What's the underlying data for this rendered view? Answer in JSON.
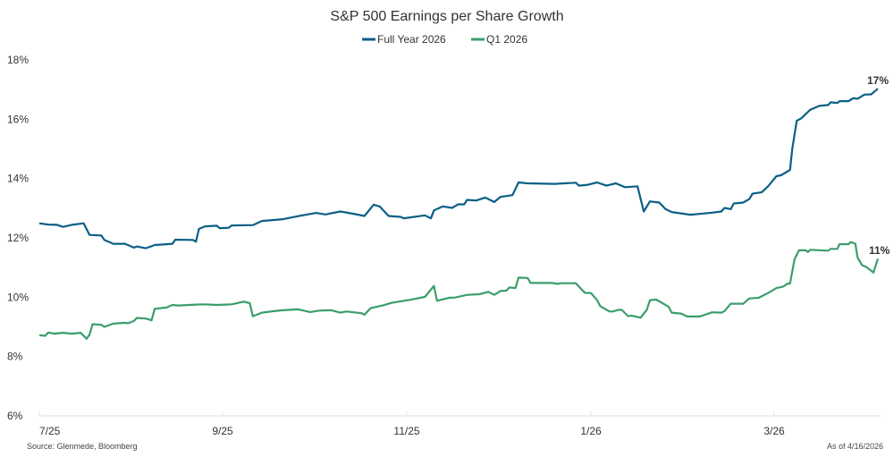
{
  "chart_data": {
    "type": "line",
    "title": "S&P 500 Earnings per Share Growth",
    "xlabel": "",
    "ylabel": "",
    "ylim": [
      6,
      18
    ],
    "yticks": [
      "6%",
      "8%",
      "10%",
      "12%",
      "14%",
      "16%",
      "18%"
    ],
    "xticks": [
      "7/25",
      "9/25",
      "11/25",
      "1/26",
      "3/26"
    ],
    "xrange": [
      "2025-07-01",
      "2026-04-16"
    ],
    "grid": false,
    "legend_position": "top-center",
    "source": "Source: Glenmede, Bloomberg",
    "as_of": "As of 4/16/2026",
    "series": [
      {
        "name": "Full Year 2026",
        "color": "#0b5f86",
        "end_label": "17%",
        "points": [
          [
            "2025-07-01",
            12.49
          ],
          [
            "2025-07-04",
            12.45
          ],
          [
            "2025-07-07",
            12.44
          ],
          [
            "2025-07-09",
            12.37
          ],
          [
            "2025-07-12",
            12.44
          ],
          [
            "2025-07-16",
            12.49
          ],
          [
            "2025-07-18",
            12.1
          ],
          [
            "2025-07-22",
            12.08
          ],
          [
            "2025-07-23",
            11.93
          ],
          [
            "2025-07-26",
            11.8
          ],
          [
            "2025-07-30",
            11.8
          ],
          [
            "2025-08-02",
            11.67
          ],
          [
            "2025-08-03",
            11.71
          ],
          [
            "2025-08-06",
            11.65
          ],
          [
            "2025-08-09",
            11.76
          ],
          [
            "2025-08-15",
            11.8
          ],
          [
            "2025-08-16",
            11.94
          ],
          [
            "2025-08-22",
            11.93
          ],
          [
            "2025-08-23",
            11.87
          ],
          [
            "2025-08-24",
            12.3
          ],
          [
            "2025-08-26",
            12.39
          ],
          [
            "2025-08-30",
            12.41
          ],
          [
            "2025-08-31",
            12.33
          ],
          [
            "2025-09-03",
            12.34
          ],
          [
            "2025-09-04",
            12.42
          ],
          [
            "2025-09-11",
            12.43
          ],
          [
            "2025-09-14",
            12.57
          ],
          [
            "2025-09-21",
            12.63
          ],
          [
            "2025-09-27",
            12.75
          ],
          [
            "2025-10-02",
            12.84
          ],
          [
            "2025-10-05",
            12.79
          ],
          [
            "2025-10-10",
            12.89
          ],
          [
            "2025-10-15",
            12.8
          ],
          [
            "2025-10-18",
            12.74
          ],
          [
            "2025-10-21",
            13.12
          ],
          [
            "2025-10-23",
            13.06
          ],
          [
            "2025-10-26",
            12.74
          ],
          [
            "2025-10-30",
            12.71
          ],
          [
            "2025-10-31",
            12.66
          ],
          [
            "2025-11-07",
            12.76
          ],
          [
            "2025-11-09",
            12.66
          ],
          [
            "2025-11-10",
            12.93
          ],
          [
            "2025-11-13",
            13.06
          ],
          [
            "2025-11-16",
            13.01
          ],
          [
            "2025-11-18",
            13.13
          ],
          [
            "2025-11-20",
            13.13
          ],
          [
            "2025-11-21",
            13.28
          ],
          [
            "2025-11-24",
            13.26
          ],
          [
            "2025-11-27",
            13.36
          ],
          [
            "2025-11-30",
            13.21
          ],
          [
            "2025-12-02",
            13.38
          ],
          [
            "2025-12-06",
            13.44
          ],
          [
            "2025-12-08",
            13.87
          ],
          [
            "2025-12-11",
            13.84
          ],
          [
            "2025-12-20",
            13.82
          ],
          [
            "2025-12-27",
            13.86
          ],
          [
            "2025-12-28",
            13.76
          ],
          [
            "2025-12-31",
            13.79
          ],
          [
            "2026-01-03",
            13.87
          ],
          [
            "2026-01-06",
            13.76
          ],
          [
            "2026-01-09",
            13.84
          ],
          [
            "2026-01-12",
            13.71
          ],
          [
            "2026-01-16",
            13.74
          ],
          [
            "2026-01-18",
            12.89
          ],
          [
            "2026-01-20",
            13.23
          ],
          [
            "2026-01-23",
            13.19
          ],
          [
            "2026-01-25",
            12.97
          ],
          [
            "2026-01-27",
            12.87
          ],
          [
            "2026-01-29",
            12.84
          ],
          [
            "2026-02-02",
            12.78
          ],
          [
            "2026-02-06",
            12.82
          ],
          [
            "2026-02-09",
            12.85
          ],
          [
            "2026-02-12",
            12.89
          ],
          [
            "2026-02-13",
            13.01
          ],
          [
            "2026-02-15",
            12.97
          ],
          [
            "2026-02-16",
            13.16
          ],
          [
            "2026-02-19",
            13.19
          ],
          [
            "2026-02-21",
            13.31
          ],
          [
            "2026-02-22",
            13.49
          ],
          [
            "2026-02-25",
            13.54
          ],
          [
            "2026-02-27",
            13.74
          ],
          [
            "2026-03-02",
            14.08
          ],
          [
            "2026-03-04",
            14.11
          ],
          [
            "2026-03-08",
            14.29
          ],
          [
            "2026-03-09",
            15.0
          ],
          [
            "2026-03-11",
            15.95
          ],
          [
            "2026-03-13",
            16.03
          ],
          [
            "2026-03-17",
            16.32
          ],
          [
            "2026-03-21",
            16.45
          ],
          [
            "2026-03-25",
            16.48
          ],
          [
            "2026-03-26",
            16.57
          ],
          [
            "2026-03-29",
            16.55
          ],
          [
            "2026-03-30",
            16.61
          ],
          [
            "2026-04-03",
            16.61
          ],
          [
            "2026-04-05",
            16.71
          ],
          [
            "2026-04-07",
            16.69
          ],
          [
            "2026-04-10",
            16.83
          ],
          [
            "2026-04-13",
            16.84
          ],
          [
            "2026-04-16",
            17.03
          ]
        ]
      },
      {
        "name": "Q1 2026",
        "color": "#3a9e6b",
        "end_label": "11%",
        "points": [
          [
            "2025-07-01",
            8.72
          ],
          [
            "2025-07-03",
            8.7
          ],
          [
            "2025-07-04",
            8.81
          ],
          [
            "2025-07-06",
            8.77
          ],
          [
            "2025-07-09",
            8.8
          ],
          [
            "2025-07-12",
            8.77
          ],
          [
            "2025-07-15",
            8.8
          ],
          [
            "2025-07-17",
            8.6
          ],
          [
            "2025-07-18",
            8.74
          ],
          [
            "2025-07-19",
            9.09
          ],
          [
            "2025-07-22",
            9.07
          ],
          [
            "2025-07-23",
            9.0
          ],
          [
            "2025-07-26",
            9.11
          ],
          [
            "2025-07-30",
            9.14
          ],
          [
            "2025-07-31",
            9.12
          ],
          [
            "2025-08-02",
            9.2
          ],
          [
            "2025-08-03",
            9.3
          ],
          [
            "2025-08-06",
            9.28
          ],
          [
            "2025-08-08",
            9.22
          ],
          [
            "2025-08-09",
            9.61
          ],
          [
            "2025-08-13",
            9.65
          ],
          [
            "2025-08-15",
            9.74
          ],
          [
            "2025-08-17",
            9.72
          ],
          [
            "2025-08-23",
            9.75
          ],
          [
            "2025-08-25",
            9.76
          ],
          [
            "2025-08-28",
            9.75
          ],
          [
            "2025-08-30",
            9.74
          ],
          [
            "2025-09-04",
            9.76
          ],
          [
            "2025-09-08",
            9.85
          ],
          [
            "2025-09-10",
            9.8
          ],
          [
            "2025-09-11",
            9.36
          ],
          [
            "2025-09-14",
            9.48
          ],
          [
            "2025-09-18",
            9.53
          ],
          [
            "2025-09-21",
            9.56
          ],
          [
            "2025-09-26",
            9.59
          ],
          [
            "2025-09-30",
            9.5
          ],
          [
            "2025-10-03",
            9.55
          ],
          [
            "2025-10-07",
            9.56
          ],
          [
            "2025-10-10",
            9.48
          ],
          [
            "2025-10-12",
            9.52
          ],
          [
            "2025-10-17",
            9.46
          ],
          [
            "2025-10-18",
            9.41
          ],
          [
            "2025-10-20",
            9.63
          ],
          [
            "2025-10-24",
            9.72
          ],
          [
            "2025-10-27",
            9.81
          ],
          [
            "2025-11-02",
            9.91
          ],
          [
            "2025-11-07",
            10.01
          ],
          [
            "2025-11-10",
            10.38
          ],
          [
            "2025-11-11",
            9.88
          ],
          [
            "2025-11-15",
            9.98
          ],
          [
            "2025-11-17",
            9.99
          ],
          [
            "2025-11-21",
            10.08
          ],
          [
            "2025-11-25",
            10.1
          ],
          [
            "2025-11-28",
            10.18
          ],
          [
            "2025-11-30",
            10.08
          ],
          [
            "2025-12-02",
            10.21
          ],
          [
            "2025-12-04",
            10.22
          ],
          [
            "2025-12-05",
            10.33
          ],
          [
            "2025-12-07",
            10.31
          ],
          [
            "2025-12-08",
            10.66
          ],
          [
            "2025-12-11",
            10.65
          ],
          [
            "2025-12-12",
            10.48
          ],
          [
            "2025-12-19",
            10.48
          ],
          [
            "2025-12-21",
            10.45
          ],
          [
            "2025-12-22",
            10.47
          ],
          [
            "2025-12-27",
            10.47
          ],
          [
            "2025-12-29",
            10.25
          ],
          [
            "2025-12-30",
            10.15
          ],
          [
            "2026-01-01",
            10.14
          ],
          [
            "2026-01-03",
            9.9
          ],
          [
            "2026-01-04",
            9.7
          ],
          [
            "2026-01-07",
            9.52
          ],
          [
            "2026-01-08",
            9.52
          ],
          [
            "2026-01-10",
            9.58
          ],
          [
            "2026-01-11",
            9.57
          ],
          [
            "2026-01-13",
            9.36
          ],
          [
            "2026-01-14",
            9.38
          ],
          [
            "2026-01-17",
            9.31
          ],
          [
            "2026-01-19",
            9.58
          ],
          [
            "2026-01-20",
            9.9
          ],
          [
            "2026-01-22",
            9.92
          ],
          [
            "2026-01-26",
            9.68
          ],
          [
            "2026-01-27",
            9.48
          ],
          [
            "2026-01-30",
            9.45
          ],
          [
            "2026-02-01",
            9.35
          ],
          [
            "2026-02-05",
            9.35
          ],
          [
            "2026-02-09",
            9.49
          ],
          [
            "2026-02-12",
            9.48
          ],
          [
            "2026-02-13",
            9.53
          ],
          [
            "2026-02-15",
            9.78
          ],
          [
            "2026-02-19",
            9.78
          ],
          [
            "2026-02-21",
            9.96
          ],
          [
            "2026-02-24",
            9.98
          ],
          [
            "2026-02-27",
            10.14
          ],
          [
            "2026-03-02",
            10.31
          ],
          [
            "2026-03-05",
            10.36
          ],
          [
            "2026-03-07",
            10.46
          ],
          [
            "2026-03-08",
            10.46
          ],
          [
            "2026-03-10",
            11.28
          ],
          [
            "2026-03-12",
            11.58
          ],
          [
            "2026-03-15",
            11.58
          ],
          [
            "2026-03-16",
            11.52
          ],
          [
            "2026-03-17",
            11.6
          ],
          [
            "2026-03-25",
            11.57
          ],
          [
            "2026-03-26",
            11.63
          ],
          [
            "2026-03-29",
            11.63
          ],
          [
            "2026-03-30",
            11.79
          ],
          [
            "2026-04-03",
            11.79
          ],
          [
            "2026-04-04",
            11.86
          ],
          [
            "2026-04-06",
            11.8
          ],
          [
            "2026-04-07",
            11.33
          ],
          [
            "2026-04-09",
            11.08
          ],
          [
            "2026-04-11",
            11.01
          ],
          [
            "2026-04-14",
            10.83
          ],
          [
            "2026-04-16",
            11.3
          ]
        ]
      }
    ]
  }
}
